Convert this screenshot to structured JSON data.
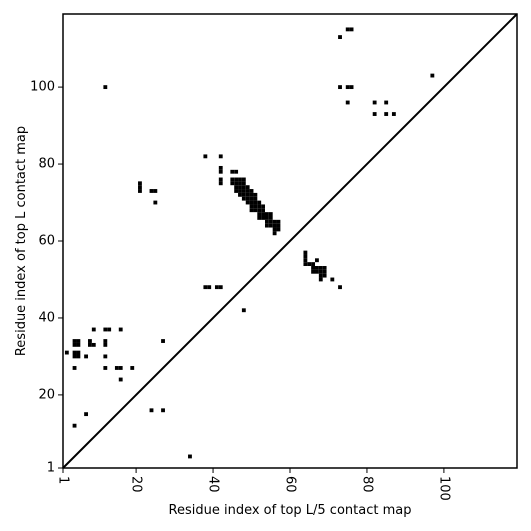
{
  "chart_data": {
    "type": "scatter",
    "title": "",
    "xlabel": "Residue index of top L/5 contact map",
    "ylabel": "Residue index of top L contact map",
    "xlim": [
      1,
      119
    ],
    "ylim": [
      1,
      119
    ],
    "x_ticks": [
      1,
      20,
      40,
      60,
      80,
      100
    ],
    "y_ticks": [
      1,
      20,
      40,
      60,
      80,
      100
    ],
    "x_tick_labels": [
      "1",
      "20",
      "40",
      "60",
      "80",
      "100"
    ],
    "y_tick_labels": [
      "1",
      "20",
      "40",
      "60",
      "80",
      "100"
    ],
    "x_tick_rotation": -90,
    "diagonal": true,
    "grid": false,
    "marker": "square",
    "color": "#000000",
    "upper_triangle_L5": [
      [
        73,
        113
      ],
      [
        75,
        115
      ],
      [
        76,
        115
      ],
      [
        73,
        100
      ],
      [
        75,
        100
      ],
      [
        76,
        100
      ],
      [
        75,
        96
      ],
      [
        82,
        96
      ],
      [
        85,
        96
      ],
      [
        82,
        93
      ],
      [
        85,
        93
      ],
      [
        87,
        93
      ],
      [
        97,
        103
      ]
    ],
    "lower_triangle_L": [
      [
        12,
        100
      ],
      [
        38,
        82
      ],
      [
        42,
        82
      ],
      [
        42,
        79
      ],
      [
        42,
        78
      ],
      [
        42,
        76
      ],
      [
        42,
        75
      ],
      [
        21,
        75
      ],
      [
        21,
        74
      ],
      [
        21,
        73
      ],
      [
        24,
        73
      ],
      [
        25,
        73
      ],
      [
        25,
        70
      ],
      [
        45,
        78
      ],
      [
        46,
        78
      ],
      [
        45,
        76
      ],
      [
        46,
        76
      ],
      [
        47,
        76
      ],
      [
        48,
        76
      ],
      [
        45,
        75
      ],
      [
        46,
        75
      ],
      [
        47,
        75
      ],
      [
        48,
        75
      ],
      [
        46,
        74
      ],
      [
        47,
        74
      ],
      [
        48,
        74
      ],
      [
        49,
        74
      ],
      [
        46,
        73
      ],
      [
        47,
        73
      ],
      [
        48,
        73
      ],
      [
        49,
        73
      ],
      [
        50,
        73
      ],
      [
        47,
        72
      ],
      [
        48,
        72
      ],
      [
        49,
        72
      ],
      [
        50,
        72
      ],
      [
        51,
        72
      ],
      [
        48,
        71
      ],
      [
        49,
        71
      ],
      [
        50,
        71
      ],
      [
        51,
        71
      ],
      [
        49,
        70
      ],
      [
        50,
        70
      ],
      [
        51,
        70
      ],
      [
        52,
        70
      ],
      [
        50,
        69
      ],
      [
        51,
        69
      ],
      [
        52,
        69
      ],
      [
        53,
        69
      ],
      [
        50,
        68
      ],
      [
        51,
        68
      ],
      [
        52,
        68
      ],
      [
        53,
        68
      ],
      [
        52,
        67
      ],
      [
        53,
        67
      ],
      [
        54,
        67
      ],
      [
        55,
        67
      ],
      [
        52,
        66
      ],
      [
        53,
        66
      ],
      [
        54,
        66
      ],
      [
        55,
        66
      ],
      [
        54,
        65
      ],
      [
        55,
        65
      ],
      [
        56,
        65
      ],
      [
        57,
        65
      ],
      [
        54,
        64
      ],
      [
        55,
        64
      ],
      [
        56,
        64
      ],
      [
        57,
        64
      ],
      [
        56,
        63
      ],
      [
        57,
        63
      ],
      [
        56,
        62
      ],
      [
        64,
        57
      ],
      [
        64,
        56
      ],
      [
        64,
        55
      ],
      [
        65,
        54
      ],
      [
        66,
        54
      ],
      [
        64,
        54
      ],
      [
        67,
        55
      ],
      [
        66,
        53
      ],
      [
        67,
        53
      ],
      [
        68,
        53
      ],
      [
        69,
        53
      ],
      [
        66,
        52
      ],
      [
        67,
        52
      ],
      [
        68,
        52
      ],
      [
        69,
        52
      ],
      [
        68,
        51
      ],
      [
        69,
        51
      ],
      [
        68,
        50
      ],
      [
        71,
        50
      ],
      [
        73,
        48
      ],
      [
        38,
        48
      ],
      [
        39,
        48
      ],
      [
        41,
        48
      ],
      [
        42,
        48
      ],
      [
        48,
        42
      ],
      [
        2,
        31
      ],
      [
        4,
        34
      ],
      [
        5,
        34
      ],
      [
        4,
        33
      ],
      [
        5,
        33
      ],
      [
        4,
        31
      ],
      [
        5,
        31
      ],
      [
        4,
        30
      ],
      [
        5,
        30
      ],
      [
        4,
        27
      ],
      [
        7,
        30
      ],
      [
        8,
        34
      ],
      [
        8,
        33
      ],
      [
        9,
        33
      ],
      [
        9,
        37
      ],
      [
        12,
        37
      ],
      [
        13,
        37
      ],
      [
        16,
        37
      ],
      [
        12,
        34
      ],
      [
        12,
        33
      ],
      [
        12,
        30
      ],
      [
        12,
        27
      ],
      [
        15,
        27
      ],
      [
        16,
        27
      ],
      [
        19,
        27
      ],
      [
        16,
        24
      ],
      [
        27,
        34
      ],
      [
        7,
        15
      ],
      [
        24,
        16
      ],
      [
        27,
        16
      ],
      [
        4,
        12
      ],
      [
        34,
        4
      ]
    ]
  }
}
